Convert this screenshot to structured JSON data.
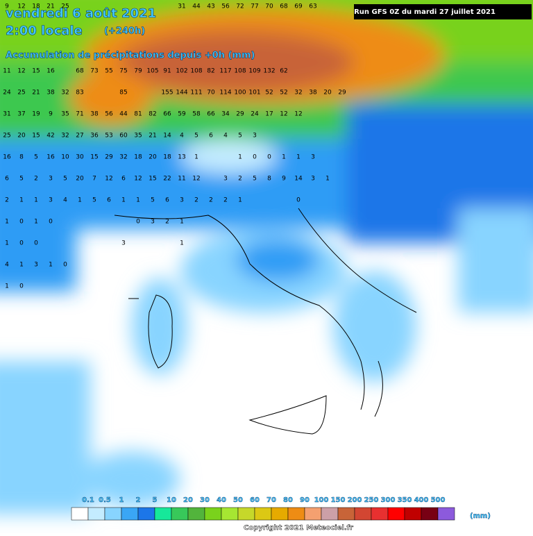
{
  "header": {
    "date": "vendredi 6 août 2021",
    "time": "2:00 locale",
    "lead": "(+240h)",
    "variable": "Accumulation de précipitations depuis +0h (mm)",
    "run": "Run GFS 0Z du mardi 27 juillet 2021"
  },
  "grid": [
    [
      9,
      12,
      18,
      21,
      25,
      null,
      null,
      null,
      null,
      null,
      null,
      null,
      31,
      44,
      43,
      56,
      72,
      77,
      70,
      68,
      69,
      63
    ],
    [],
    [],
    [
      11,
      12,
      15,
      16,
      null,
      68,
      73,
      55,
      75,
      79,
      105,
      91,
      102,
      108,
      82,
      117,
      108,
      109,
      132,
      62
    ],
    [
      24,
      25,
      21,
      38,
      32,
      83,
      null,
      null,
      85,
      null,
      null,
      155,
      144,
      111,
      70,
      114,
      100,
      101,
      52,
      52,
      32,
      38,
      20,
      29
    ],
    [
      31,
      37,
      19,
      9,
      35,
      71,
      38,
      56,
      44,
      81,
      82,
      66,
      59,
      58,
      66,
      34,
      29,
      24,
      17,
      12,
      12
    ],
    [
      25,
      20,
      15,
      42,
      32,
      27,
      36,
      53,
      60,
      35,
      21,
      14,
      4,
      5,
      6,
      4,
      5,
      3
    ],
    [
      16,
      8,
      5,
      16,
      10,
      30,
      15,
      29,
      32,
      18,
      20,
      18,
      13,
      1,
      null,
      null,
      1,
      0,
      0,
      1,
      1,
      3
    ],
    [
      6,
      5,
      2,
      3,
      5,
      20,
      7,
      12,
      6,
      12,
      15,
      22,
      11,
      12,
      null,
      3,
      2,
      5,
      8,
      9,
      14,
      3,
      1
    ],
    [
      2,
      1,
      1,
      3,
      4,
      1,
      5,
      6,
      1,
      1,
      5,
      6,
      3,
      2,
      2,
      2,
      1,
      null,
      null,
      null,
      0
    ],
    [
      1,
      0,
      1,
      0,
      null,
      null,
      null,
      null,
      null,
      0,
      3,
      2,
      1
    ],
    [
      1,
      0,
      0,
      null,
      null,
      null,
      null,
      null,
      3,
      null,
      null,
      null,
      1
    ],
    [
      4,
      1,
      3,
      1,
      0
    ],
    [
      1,
      0
    ]
  ],
  "legend": {
    "unit": "(mm)",
    "values": [
      "0.1",
      "0.5",
      "1",
      "2",
      "5",
      "10",
      "20",
      "30",
      "40",
      "50",
      "60",
      "70",
      "80",
      "90",
      "100",
      "150",
      "200",
      "250",
      "300",
      "350",
      "400",
      "500"
    ],
    "colors": [
      "#ffffff",
      "#c4ecff",
      "#88d4ff",
      "#3aa6f5",
      "#1c76e8",
      "#16e89a",
      "#38c85a",
      "#52b43c",
      "#7ad21c",
      "#a6e632",
      "#c6d82a",
      "#dcc814",
      "#e6aa00",
      "#ee8c14",
      "#f4a070",
      "#cca0a8",
      "#c86438",
      "#d24632",
      "#e83030",
      "#ff0000",
      "#c00000",
      "#780014",
      "#8c5adc"
    ]
  },
  "footer": {
    "copyright": "Copyright 2021 Meteociel.fr"
  }
}
